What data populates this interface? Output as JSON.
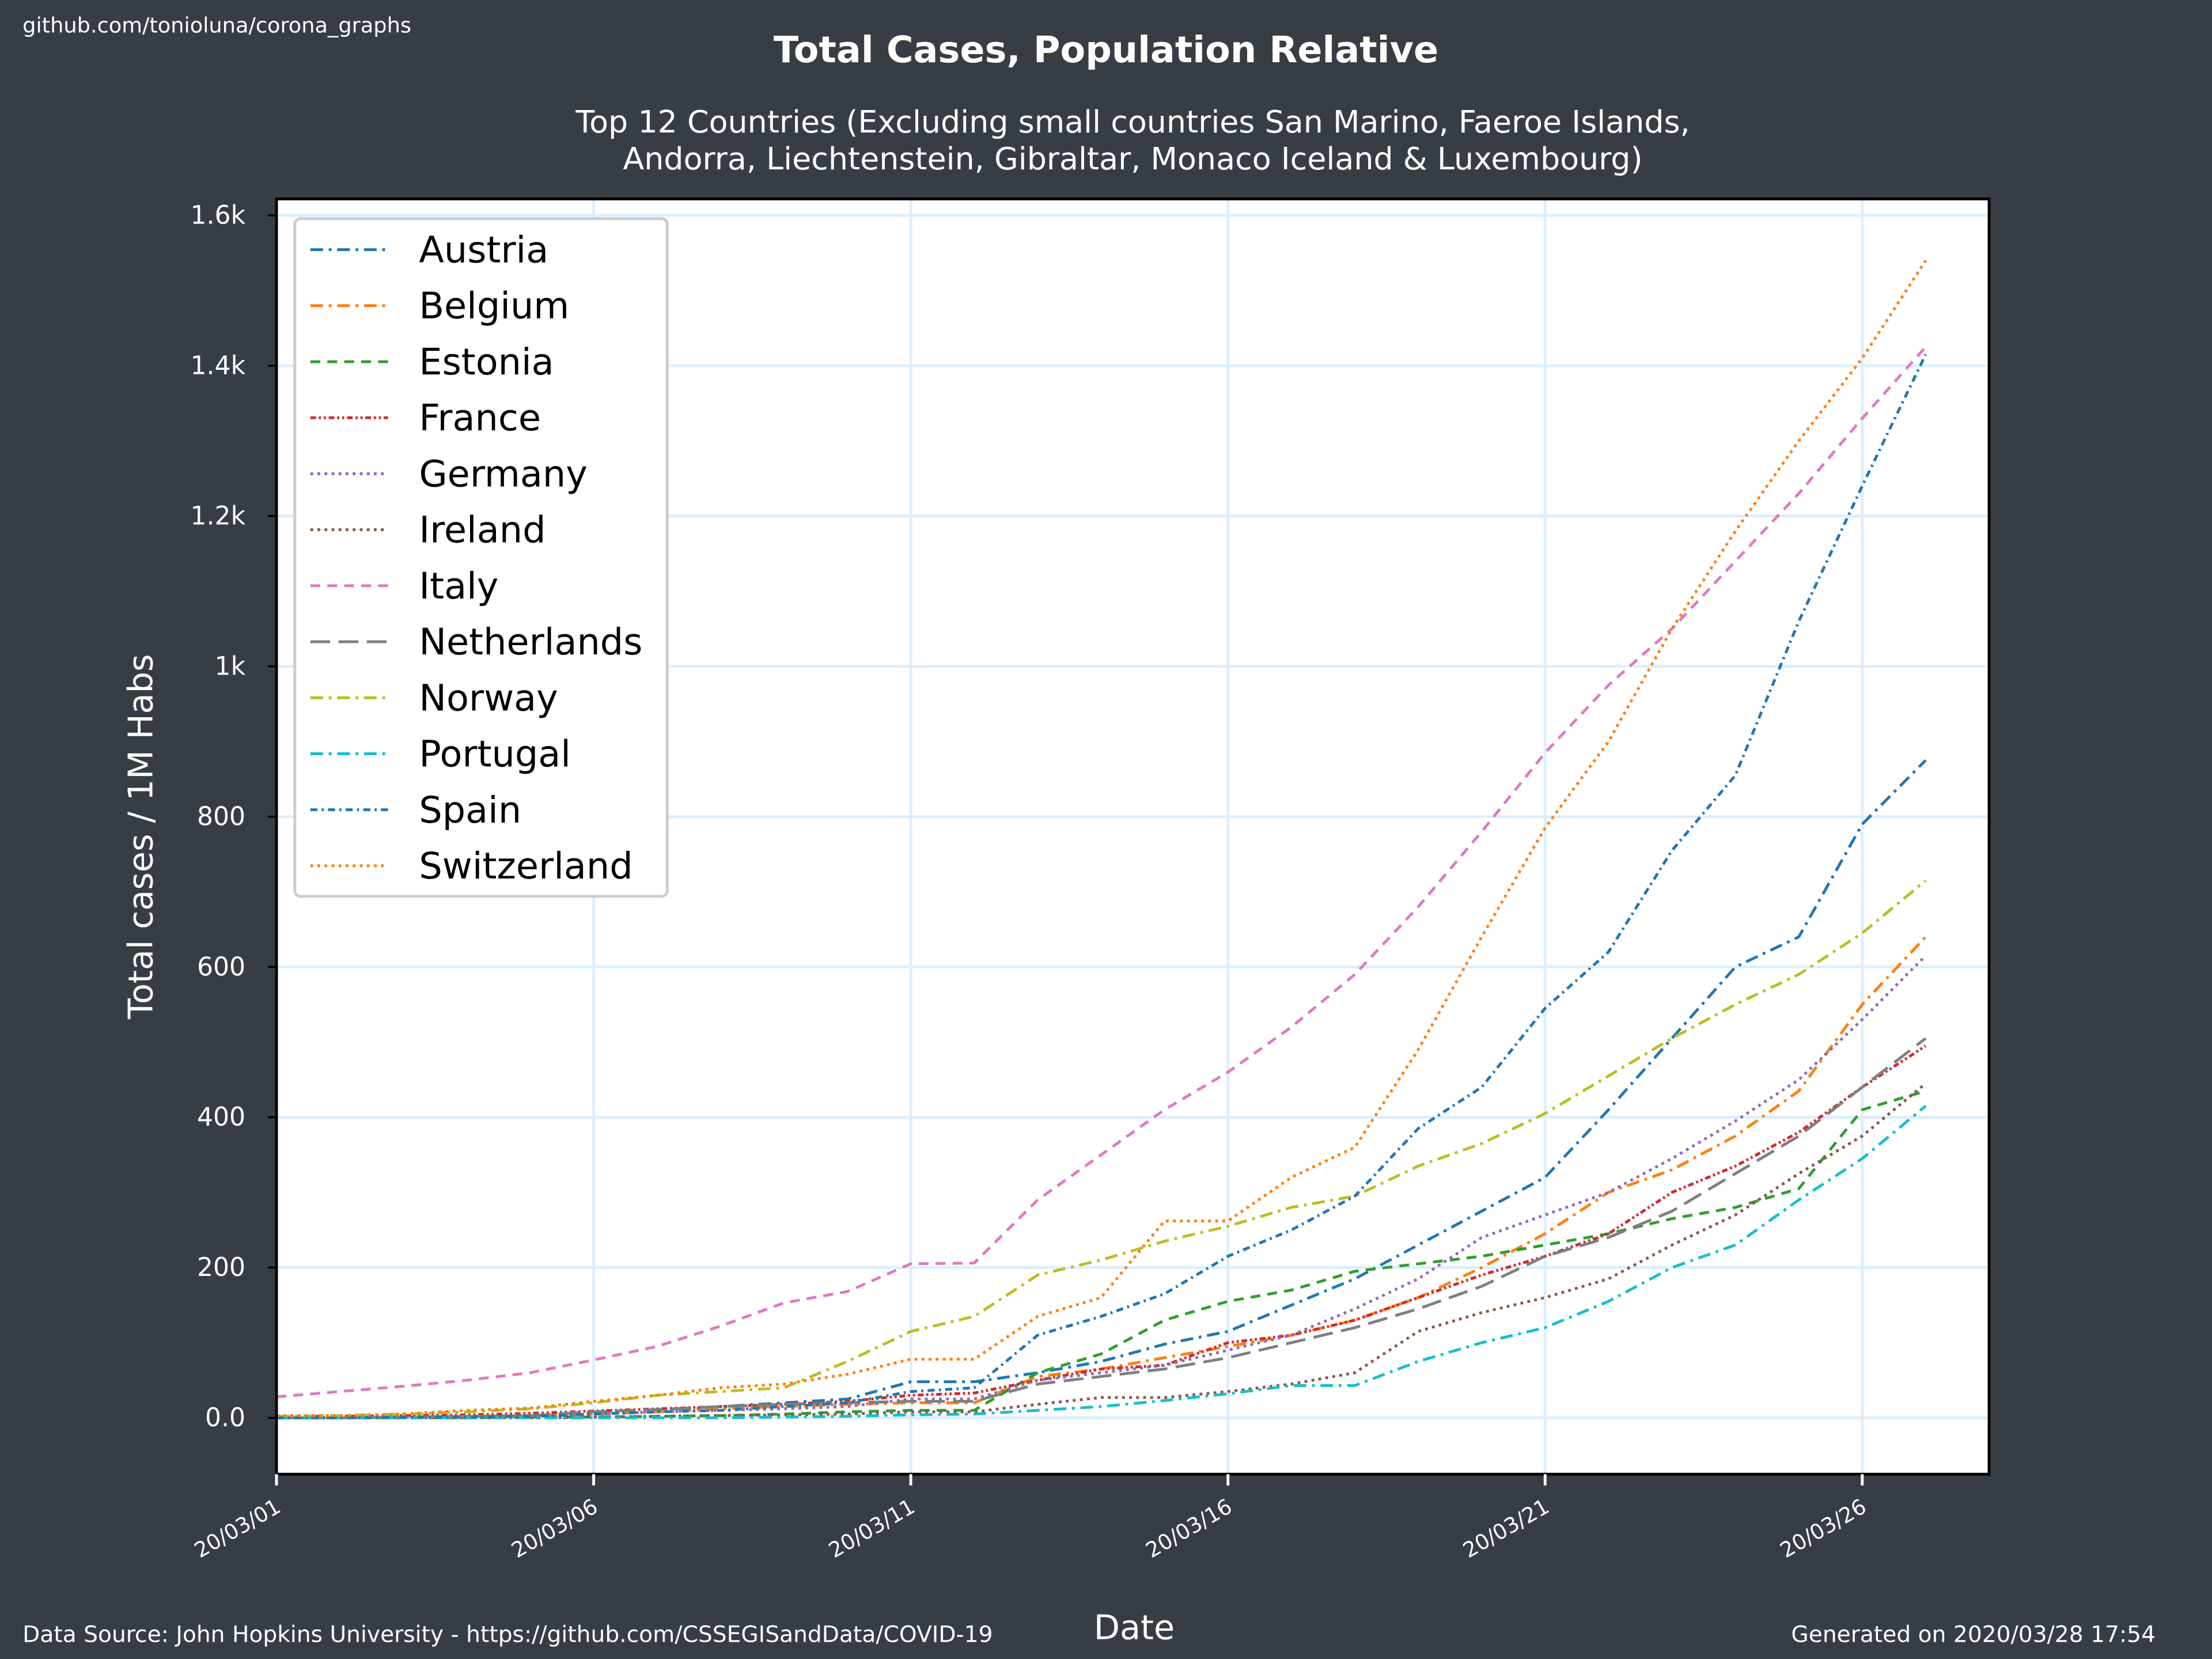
{
  "chart_data": {
    "type": "line",
    "source_link": "github.com/tonioluna/corona_graphs",
    "title": "Total Cases, Population Relative",
    "subtitle": [
      "Top 12 Countries (Excluding small countries San Marino, Faeroe Islands,",
      "Andorra, Liechtenstein, Gibraltar, Monaco Iceland & Luxembourg)"
    ],
    "x_label": "Date",
    "y_label": "Total cases / 1M Habs",
    "footer_left": "Data Source: John Hopkins University - https://github.com/CSSEGISandData/COVID-19",
    "footer_right": "Generated on 2020/03/28 17:54",
    "x": [
      "20/03/01",
      "20/03/02",
      "20/03/03",
      "20/03/04",
      "20/03/05",
      "20/03/06",
      "20/03/07",
      "20/03/08",
      "20/03/09",
      "20/03/10",
      "20/03/11",
      "20/03/12",
      "20/03/13",
      "20/03/14",
      "20/03/15",
      "20/03/16",
      "20/03/17",
      "20/03/18",
      "20/03/19",
      "20/03/20",
      "20/03/21",
      "20/03/22",
      "20/03/23",
      "20/03/24",
      "20/03/25",
      "20/03/26",
      "20/03/27"
    ],
    "xlim": [
      "20/03/01",
      "20/03/28"
    ],
    "xticks": [
      "20/03/01",
      "20/03/06",
      "20/03/11",
      "20/03/16",
      "20/03/21",
      "20/03/26"
    ],
    "ylim": [
      -75,
      1622
    ],
    "yticks": [
      {
        "value": 0,
        "label": "0.0"
      },
      200,
      400,
      600,
      800,
      {
        "value": 1000,
        "label": "1k"
      },
      {
        "value": 1200,
        "label": "1.2k"
      },
      {
        "value": 1400,
        "label": "1.4k"
      },
      {
        "value": 1600,
        "label": "1.6k"
      }
    ],
    "grid": true,
    "legend": "upper left",
    "series": [
      {
        "name": "Austria",
        "color": "#1f77b4",
        "linestyle": "dashdot",
        "values": [
          0,
          0,
          0,
          1,
          2,
          5,
          8,
          15,
          20,
          25,
          48,
          48,
          60,
          75,
          98,
          115,
          150,
          185,
          230,
          275,
          320,
          410,
          505,
          600,
          640,
          790,
          875
        ]
      },
      {
        "name": "Belgium",
        "color": "#ff7f0e",
        "linestyle": "dashdot",
        "values": [
          0,
          0,
          1,
          2,
          3,
          5,
          8,
          12,
          15,
          18,
          20,
          20,
          55,
          65,
          80,
          95,
          110,
          130,
          160,
          200,
          245,
          300,
          330,
          375,
          435,
          550,
          640
        ]
      },
      {
        "name": "Estonia",
        "color": "#2ca02c",
        "linestyle": "dashed",
        "values": [
          0,
          0,
          0,
          0,
          1,
          1,
          2,
          3,
          5,
          8,
          10,
          10,
          60,
          85,
          130,
          155,
          170,
          195,
          205,
          215,
          230,
          245,
          265,
          280,
          305,
          410,
          435
        ]
      },
      {
        "name": "France",
        "color": "#d62728",
        "linestyle": "dashdotdot",
        "values": [
          2,
          2,
          3,
          4,
          6,
          9,
          12,
          15,
          18,
          22,
          30,
          33,
          50,
          65,
          70,
          100,
          110,
          130,
          160,
          190,
          215,
          245,
          300,
          335,
          380,
          440,
          495
        ]
      },
      {
        "name": "Germany",
        "color": "#9467bd",
        "linestyle": "dotted",
        "values": [
          1,
          1,
          1,
          2,
          3,
          5,
          8,
          10,
          12,
          15,
          25,
          25,
          50,
          60,
          70,
          90,
          110,
          145,
          185,
          240,
          270,
          300,
          345,
          395,
          450,
          530,
          615
        ]
      },
      {
        "name": "Ireland",
        "color": "#8c564b",
        "linestyle": "dotted",
        "values": [
          0,
          0,
          0,
          0,
          0,
          1,
          2,
          3,
          4,
          5,
          8,
          8,
          18,
          27,
          27,
          35,
          45,
          60,
          115,
          140,
          160,
          185,
          230,
          270,
          325,
          375,
          445
        ]
      },
      {
        "name": "Italy",
        "color": "#e377c2",
        "linestyle": "dashed",
        "values": [
          28,
          35,
          42,
          50,
          60,
          77,
          95,
          122,
          153,
          168,
          205,
          206,
          290,
          350,
          410,
          460,
          520,
          590,
          680,
          780,
          885,
          975,
          1050,
          1140,
          1230,
          1330,
          1425
        ]
      },
      {
        "name": "Netherlands",
        "color": "#7f7f7f",
        "linestyle": "longdash",
        "values": [
          0,
          0,
          1,
          2,
          3,
          8,
          11,
          15,
          18,
          20,
          22,
          22,
          45,
          55,
          65,
          80,
          100,
          120,
          145,
          175,
          215,
          240,
          275,
          325,
          375,
          440,
          505
        ]
      },
      {
        "name": "Norway",
        "color": "#bcbd22",
        "linestyle": "dashdot",
        "values": [
          2,
          3,
          5,
          8,
          12,
          20,
          30,
          35,
          40,
          75,
          115,
          135,
          190,
          210,
          235,
          255,
          280,
          295,
          335,
          365,
          405,
          455,
          505,
          550,
          590,
          645,
          715
        ]
      },
      {
        "name": "Portugal",
        "color": "#17becf",
        "linestyle": "dashdot",
        "values": [
          0,
          0,
          0,
          0,
          0,
          0,
          0,
          0,
          1,
          2,
          4,
          5,
          10,
          15,
          23,
          32,
          43,
          43,
          75,
          100,
          120,
          155,
          200,
          230,
          290,
          345,
          415
        ]
      },
      {
        "name": "Spain",
        "color": "#1f77b4",
        "linestyle": "dashdotsmall",
        "values": [
          0,
          0,
          1,
          1,
          2,
          5,
          8,
          10,
          15,
          20,
          35,
          40,
          110,
          135,
          165,
          215,
          250,
          295,
          385,
          440,
          545,
          620,
          755,
          855,
          1060,
          1240,
          1415
        ]
      },
      {
        "name": "Switzerland",
        "color": "#ff7f0e",
        "linestyle": "dotted",
        "values": [
          3,
          3,
          5,
          10,
          13,
          22,
          30,
          40,
          45,
          58,
          78,
          78,
          135,
          160,
          262,
          262,
          320,
          360,
          490,
          640,
          785,
          900,
          1050,
          1180,
          1300,
          1410,
          1540
        ]
      }
    ]
  }
}
